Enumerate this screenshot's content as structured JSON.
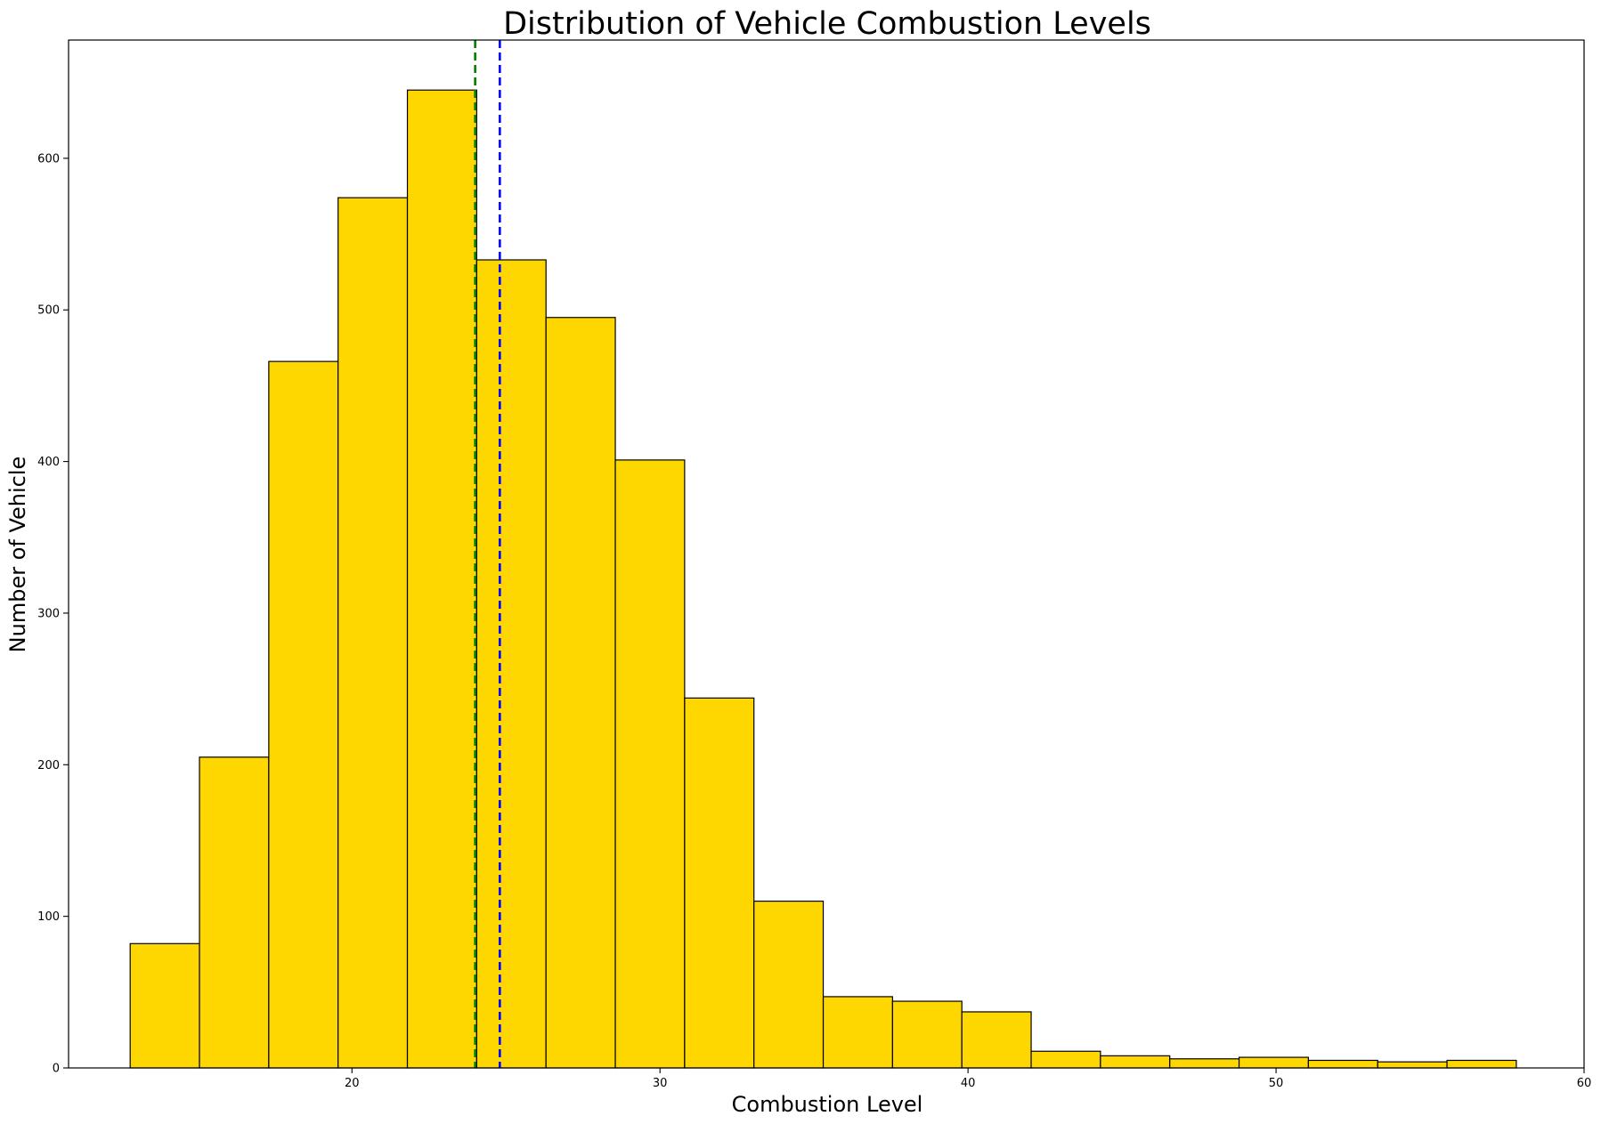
{
  "chart_data": {
    "type": "bar",
    "title": "Distribution of Vehicle Combustion Levels",
    "xlabel": "Combustion Level",
    "ylabel": "Number of Vehicle",
    "xlim": [
      10.8,
      60
    ],
    "ylim": [
      0,
      678
    ],
    "x_ticks": [
      20,
      30,
      40,
      50,
      60
    ],
    "y_ticks": [
      0,
      100,
      200,
      300,
      400,
      500,
      600
    ],
    "grid": false,
    "bins": [
      {
        "start": 12.8,
        "end": 15.05,
        "count": 82
      },
      {
        "start": 15.05,
        "end": 17.3,
        "count": 205
      },
      {
        "start": 17.3,
        "end": 19.55,
        "count": 466
      },
      {
        "start": 19.55,
        "end": 21.8,
        "count": 574
      },
      {
        "start": 21.8,
        "end": 24.05,
        "count": 645
      },
      {
        "start": 24.05,
        "end": 26.3,
        "count": 533
      },
      {
        "start": 26.3,
        "end": 28.55,
        "count": 495
      },
      {
        "start": 28.55,
        "end": 30.8,
        "count": 401
      },
      {
        "start": 30.8,
        "end": 33.05,
        "count": 244
      },
      {
        "start": 33.05,
        "end": 35.3,
        "count": 110
      },
      {
        "start": 35.3,
        "end": 37.55,
        "count": 47
      },
      {
        "start": 37.55,
        "end": 39.8,
        "count": 44
      },
      {
        "start": 39.8,
        "end": 42.05,
        "count": 37
      },
      {
        "start": 42.05,
        "end": 44.3,
        "count": 11
      },
      {
        "start": 44.3,
        "end": 46.55,
        "count": 8
      },
      {
        "start": 46.55,
        "end": 48.8,
        "count": 6
      },
      {
        "start": 48.8,
        "end": 51.05,
        "count": 7
      },
      {
        "start": 51.05,
        "end": 53.3,
        "count": 5
      },
      {
        "start": 53.3,
        "end": 55.55,
        "count": 4
      },
      {
        "start": 55.55,
        "end": 57.8,
        "count": 5
      }
    ],
    "reference_lines": [
      {
        "x": 24.0,
        "color": "#008000",
        "style": "dashed"
      },
      {
        "x": 24.8,
        "color": "#0000ff",
        "style": "dashed"
      }
    ],
    "colors": {
      "bar_fill": "#ffd700",
      "bar_edge": "#000000"
    }
  }
}
